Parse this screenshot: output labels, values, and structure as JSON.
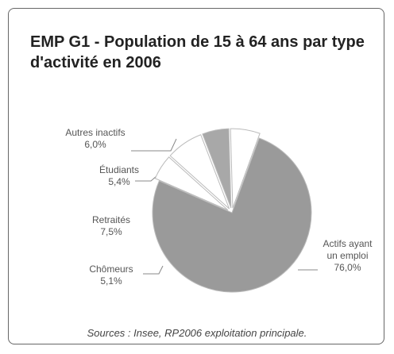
{
  "chart_data": {
    "type": "pie",
    "title": "EMP G1 - Population de 15 à 64 ans par type d'activité en 2006",
    "categories": [
      "Actifs ayant un emploi",
      "Chômeurs",
      "Retraités",
      "Étudiants",
      "Autres inactifs"
    ],
    "values": [
      76.0,
      5.1,
      7.5,
      5.4,
      6.0
    ],
    "value_labels": [
      "76,0%",
      "5,1%",
      "7,5%",
      "5,4%",
      "6,0%"
    ],
    "colors": [
      "#9a9a9a",
      "#ffffff",
      "#ffffff",
      "#a8a8a8",
      "#ffffff"
    ],
    "source": "Sources : Insee, RP2006 exploitation principale."
  }
}
